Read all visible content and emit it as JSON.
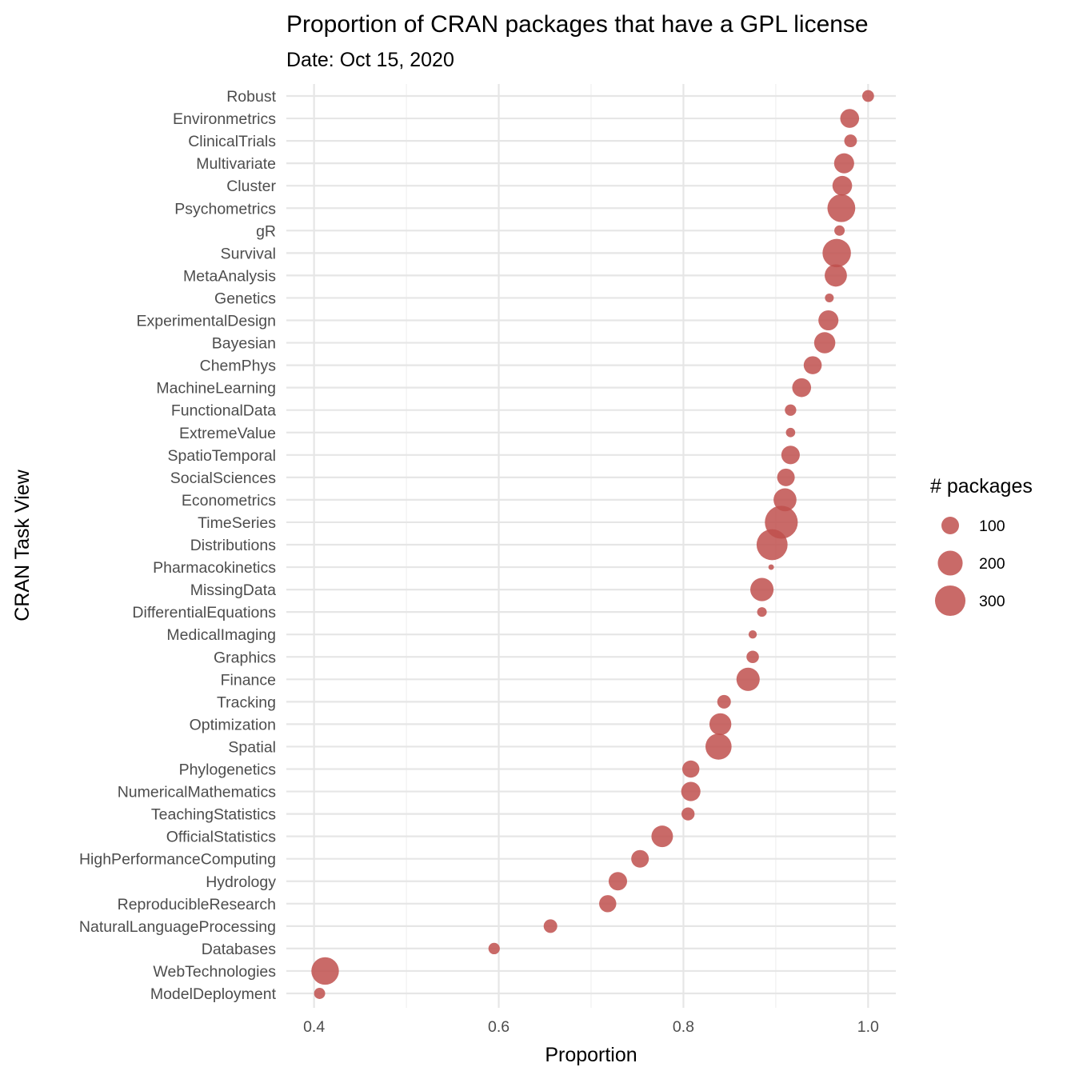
{
  "chart_data": {
    "type": "scatter",
    "title": "Proportion of CRAN packages that have a GPL license",
    "subtitle": "Date: Oct 15, 2020",
    "xlabel": "Proportion",
    "ylabel": "CRAN Task View",
    "xlim": [
      0.37,
      1.03
    ],
    "x_ticks": [
      "0.4",
      "0.6",
      "0.8",
      "1.0"
    ],
    "x_tick_values": [
      0.4,
      0.6,
      0.8,
      1.0
    ],
    "grid": true,
    "point_color": "#c0504d",
    "legend": {
      "title": "# packages",
      "placement": "right",
      "entries": [
        {
          "label": "100",
          "value": 100
        },
        {
          "label": "200",
          "value": 200
        },
        {
          "label": "300",
          "value": 300
        }
      ]
    },
    "points": [
      {
        "label": "Robust",
        "x": 1.0,
        "size": 45
      },
      {
        "label": "Environmetrics",
        "x": 0.98,
        "size": 115
      },
      {
        "label": "ClinicalTrials",
        "x": 0.981,
        "size": 52
      },
      {
        "label": "Multivariate",
        "x": 0.974,
        "size": 130
      },
      {
        "label": "Cluster",
        "x": 0.972,
        "size": 125
      },
      {
        "label": "Psychometrics",
        "x": 0.971,
        "size": 250
      },
      {
        "label": "gR",
        "x": 0.969,
        "size": 35
      },
      {
        "label": "Survival",
        "x": 0.966,
        "size": 260
      },
      {
        "label": "MetaAnalysis",
        "x": 0.965,
        "size": 160
      },
      {
        "label": "Genetics",
        "x": 0.958,
        "size": 25
      },
      {
        "label": "ExperimentalDesign",
        "x": 0.957,
        "size": 130
      },
      {
        "label": "Bayesian",
        "x": 0.953,
        "size": 145
      },
      {
        "label": "ChemPhys",
        "x": 0.94,
        "size": 105
      },
      {
        "label": "MachineLearning",
        "x": 0.928,
        "size": 115
      },
      {
        "label": "FunctionalData",
        "x": 0.916,
        "size": 42
      },
      {
        "label": "ExtremeValue",
        "x": 0.916,
        "size": 28
      },
      {
        "label": "SpatioTemporal",
        "x": 0.916,
        "size": 110
      },
      {
        "label": "SocialSciences",
        "x": 0.911,
        "size": 100
      },
      {
        "label": "Econometrics",
        "x": 0.91,
        "size": 170
      },
      {
        "label": "TimeSeries",
        "x": 0.906,
        "size": 350
      },
      {
        "label": "Distributions",
        "x": 0.896,
        "size": 310
      },
      {
        "label": "Pharmacokinetics",
        "x": 0.895,
        "size": 10
      },
      {
        "label": "MissingData",
        "x": 0.885,
        "size": 175
      },
      {
        "label": "DifferentialEquations",
        "x": 0.885,
        "size": 30
      },
      {
        "label": "MedicalImaging",
        "x": 0.875,
        "size": 22
      },
      {
        "label": "Graphics",
        "x": 0.875,
        "size": 50
      },
      {
        "label": "Finance",
        "x": 0.87,
        "size": 175
      },
      {
        "label": "Tracking",
        "x": 0.844,
        "size": 60
      },
      {
        "label": "Optimization",
        "x": 0.84,
        "size": 155
      },
      {
        "label": "Spatial",
        "x": 0.838,
        "size": 220
      },
      {
        "label": "Phylogenetics",
        "x": 0.808,
        "size": 95
      },
      {
        "label": "NumericalMathematics",
        "x": 0.808,
        "size": 120
      },
      {
        "label": "TeachingStatistics",
        "x": 0.805,
        "size": 55
      },
      {
        "label": "OfficialStatistics",
        "x": 0.777,
        "size": 150
      },
      {
        "label": "HighPerformanceComputing",
        "x": 0.753,
        "size": 100
      },
      {
        "label": "Hydrology",
        "x": 0.729,
        "size": 110
      },
      {
        "label": "ReproducibleResearch",
        "x": 0.718,
        "size": 95
      },
      {
        "label": "NaturalLanguageProcessing",
        "x": 0.656,
        "size": 60
      },
      {
        "label": "Databases",
        "x": 0.595,
        "size": 42
      },
      {
        "label": "WebTechnologies",
        "x": 0.412,
        "size": 245
      },
      {
        "label": "ModelDeployment",
        "x": 0.406,
        "size": 40
      }
    ]
  }
}
